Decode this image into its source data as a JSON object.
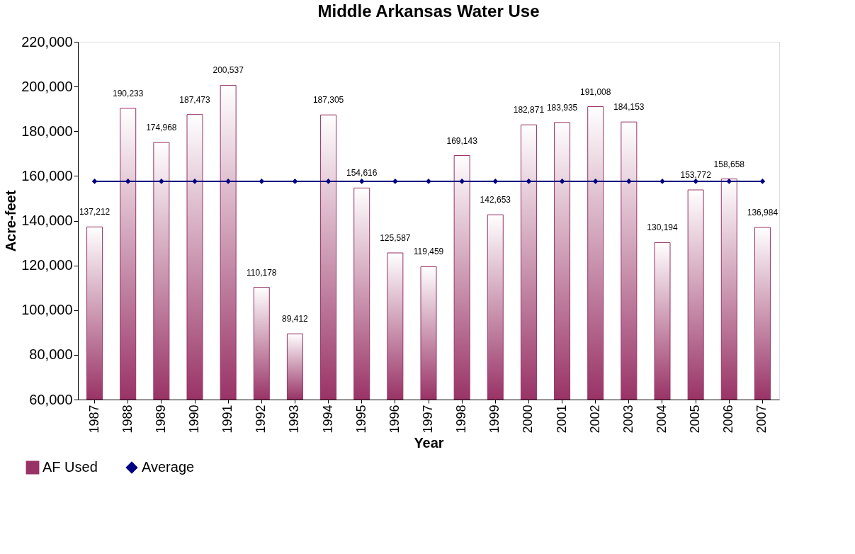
{
  "chart_data": {
    "type": "bar",
    "title": "Middle Arkansas Water Use",
    "xlabel": "Year",
    "ylabel": "Acre-feet",
    "categories": [
      "1987",
      "1988",
      "1989",
      "1990",
      "1991",
      "1992",
      "1993",
      "1994",
      "1995",
      "1996",
      "1997",
      "1998",
      "1999",
      "2000",
      "2001",
      "2002",
      "2003",
      "2004",
      "2005",
      "2006",
      "2007"
    ],
    "series": [
      {
        "name": "AF Used",
        "color": "#993366",
        "values": [
          137212,
          190233,
          174968,
          187473,
          200537,
          110178,
          89412,
          187305,
          154616,
          125587,
          119459,
          169143,
          142653,
          182871,
          183935,
          191008,
          184153,
          130194,
          153772,
          158658,
          136984
        ],
        "value_labels": [
          "137,212",
          "190,233",
          "174,968",
          "187,473",
          "200,537",
          "110,178",
          "89,412",
          "187,305",
          "154,616",
          "125,587",
          "119,459",
          "169,143",
          "142,653",
          "182,871",
          "183,935",
          "191,008",
          "184,153",
          "130,194",
          "153,772",
          "158,658",
          "136,984"
        ]
      },
      {
        "name": "Average",
        "type": "line",
        "color": "#000080",
        "marker": "diamond",
        "values": [
          157600,
          157600,
          157600,
          157600,
          157600,
          157600,
          157600,
          157600,
          157600,
          157600,
          157600,
          157600,
          157600,
          157600,
          157600,
          157600,
          157600,
          157600,
          157600,
          157600,
          157600
        ]
      }
    ],
    "ylim": [
      60000,
      220000
    ],
    "yticks": [
      {
        "value": 60000,
        "label": "60,000"
      },
      {
        "value": 80000,
        "label": "80,000"
      },
      {
        "value": 100000,
        "label": "100,000"
      },
      {
        "value": 120000,
        "label": "120,000"
      },
      {
        "value": 140000,
        "label": "140,000"
      },
      {
        "value": 160000,
        "label": "160,000"
      },
      {
        "value": 180000,
        "label": "180,000"
      },
      {
        "value": 200000,
        "label": "200,000"
      },
      {
        "value": 220000,
        "label": "220,000"
      }
    ],
    "grid": false,
    "legend": "bottom left"
  }
}
